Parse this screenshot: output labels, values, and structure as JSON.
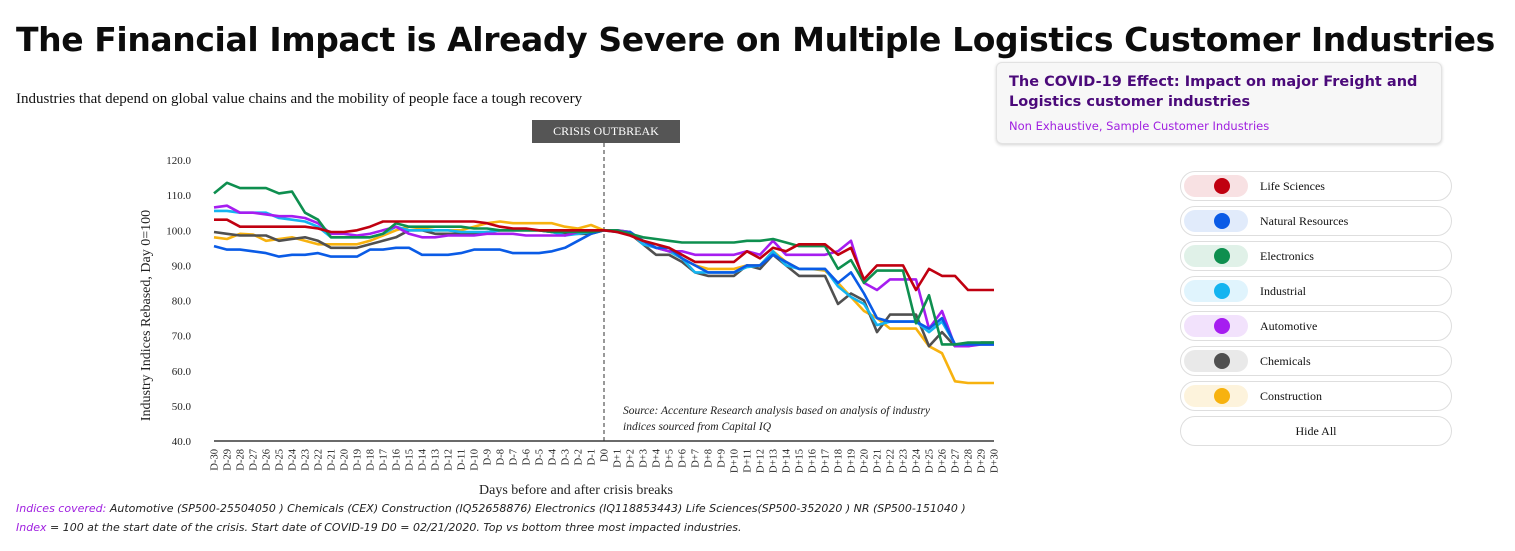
{
  "header": {
    "title": "The Financial Impact is Already Severe on Multiple Logistics Customer Industries",
    "subtitle": "Industries that depend on global value chains and the mobility of people face a tough recovery"
  },
  "info_card": {
    "title": "The COVID-19 Effect: Impact on major Freight and Logistics customer industries",
    "subtitle": "Non Exhaustive, Sample Customer Industries"
  },
  "legend": {
    "items": [
      {
        "label": "Life Sciences",
        "color": "#c00010",
        "bg": "#f8e1e3"
      },
      {
        "label": "Natural Resources",
        "color": "#0a5be6",
        "bg": "#e1ebfb"
      },
      {
        "label": "Electronics",
        "color": "#0e8f4f",
        "bg": "#e0f1e8"
      },
      {
        "label": "Industrial",
        "color": "#14b4f0",
        "bg": "#e0f4fd"
      },
      {
        "label": "Automotive",
        "color": "#a61df0",
        "bg": "#f2e2fc"
      },
      {
        "label": "Chemicals",
        "color": "#505050",
        "bg": "#e9e9e9"
      },
      {
        "label": "Construction",
        "color": "#f7b20f",
        "bg": "#fdf3dc"
      }
    ],
    "hide_all_label": "Hide All"
  },
  "footnotes": {
    "indices_key": "Indices covered:",
    "indices_text": " Automotive (SP500-25504050 ) Chemicals (CEX) Construction (IQ52658876) Electronics (IQ118853443) Life Sciences(SP500-352020 ) NR (SP500-151040 )",
    "index_key": "Index",
    "index_text": " = 100 at the start date of the crisis. Start date of COVID-19 D0 = 02/21/2020. Top vs bottom three most impacted industries."
  },
  "chart_data": {
    "type": "line",
    "crisis_label": "CRISIS OUTBREAK",
    "crisis_x": "D0",
    "source_note": [
      "Source: Accenture Research analysis based on analysis of industry",
      "indices sourced from Capital IQ"
    ],
    "xlabel": "Days before and after crisis breaks",
    "ylabel": "Industry Indices Rebased, Day 0=100",
    "ylim": [
      40,
      120
    ],
    "yticks": [
      "120.0",
      "110.0",
      "100.0",
      "90.0",
      "80.0",
      "70.0",
      "60.0",
      "50.0",
      "40.0"
    ],
    "grid": false,
    "categories": [
      "D-30",
      "D-29",
      "D-28",
      "D-27",
      "D-26",
      "D-25",
      "D-24",
      "D-23",
      "D-22",
      "D-21",
      "D-20",
      "D-19",
      "D-18",
      "D-17",
      "D-16",
      "D-15",
      "D-14",
      "D-13",
      "D-12",
      "D-11",
      "D-10",
      "D-9",
      "D-8",
      "D-7",
      "D-6",
      "D-5",
      "D-4",
      "D-3",
      "D-2",
      "D-1",
      "D0",
      "D+1",
      "D+2",
      "D+3",
      "D+4",
      "D+5",
      "D+6",
      "D+7",
      "D+8",
      "D+9",
      "D+10",
      "D+11",
      "D+12",
      "D+13",
      "D+14",
      "D+15",
      "D+16",
      "D+17",
      "D+18",
      "D+19",
      "D+20",
      "D+21",
      "D+22",
      "D+23",
      "D+24",
      "D+25",
      "D+26",
      "D+27",
      "D+28",
      "D+29",
      "D+30"
    ],
    "series": [
      {
        "name": "Construction",
        "color": "#f7b20f",
        "values": [
          98,
          97.5,
          99,
          98.8,
          97,
          97.5,
          98,
          97,
          96,
          96,
          96,
          96,
          97,
          98.5,
          100,
          101,
          100.5,
          100,
          100,
          100,
          101,
          102,
          102.5,
          102,
          102,
          102,
          102,
          101,
          100.5,
          101.5,
          100,
          100,
          99.5,
          97,
          95,
          94,
          92,
          90,
          89,
          89,
          89,
          90,
          90,
          94,
          91,
          89,
          89,
          88.5,
          85,
          81,
          77,
          75,
          72,
          72,
          72,
          67,
          65,
          57,
          56.5,
          56.5,
          56.5
        ]
      },
      {
        "name": "Chemicals",
        "color": "#505050",
        "values": [
          99.5,
          99,
          98.5,
          98.5,
          98.5,
          97,
          97.5,
          98,
          97,
          95,
          95,
          95,
          96,
          97,
          98,
          100,
          100,
          99,
          99,
          99,
          99,
          99.5,
          100,
          100,
          100,
          100,
          99.5,
          99,
          99,
          99,
          100,
          100,
          99,
          96,
          93,
          93,
          91,
          88,
          87,
          87,
          87,
          90,
          89,
          93,
          90,
          87,
          87,
          87,
          79,
          82,
          80,
          71,
          76,
          76,
          76,
          67,
          71,
          67,
          67,
          68,
          68
        ]
      },
      {
        "name": "Industrial",
        "color": "#14b4f0",
        "values": [
          105.5,
          105.5,
          105,
          105,
          105,
          103.5,
          103,
          102.5,
          101,
          98,
          98,
          98,
          98,
          99,
          101,
          100,
          100,
          100,
          100,
          99.5,
          99.5,
          99.5,
          100,
          100,
          100,
          100,
          99.5,
          98.5,
          99,
          99.5,
          100,
          100,
          99.5,
          96,
          95,
          94,
          92,
          88,
          88,
          88,
          88,
          89.5,
          90,
          94,
          90,
          89,
          89,
          89,
          84,
          81,
          79,
          73,
          74,
          74,
          74,
          71,
          74,
          67.5,
          67.5,
          67.5,
          67.5
        ]
      },
      {
        "name": "Automotive",
        "color": "#a61df0",
        "values": [
          106.5,
          107,
          105,
          105,
          104.5,
          104,
          104,
          103.5,
          102,
          99,
          99,
          98.5,
          99,
          100,
          101,
          99,
          98,
          98,
          98.5,
          98.5,
          98.5,
          99,
          99,
          99,
          98.5,
          98.5,
          98.5,
          98.5,
          99.5,
          100,
          100,
          100,
          99.5,
          97,
          95,
          94,
          94,
          93,
          93,
          93,
          93,
          94,
          93,
          97,
          93,
          93,
          93,
          93,
          94,
          97,
          85,
          83,
          86,
          86,
          86,
          72,
          77,
          67,
          67,
          67.5,
          67.5
        ]
      },
      {
        "name": "Natural Resources",
        "color": "#0a5be6",
        "values": [
          95.5,
          94.5,
          94.5,
          94,
          93.5,
          92.5,
          93,
          93,
          93.5,
          92.5,
          92.5,
          92.5,
          94.5,
          94.5,
          95,
          95,
          93,
          93,
          93,
          93.5,
          94.5,
          94.5,
          94.5,
          93.5,
          93.5,
          93.5,
          94,
          95,
          97,
          99,
          100,
          99.5,
          99.5,
          97,
          95,
          95,
          92,
          90,
          88,
          88,
          88,
          90,
          90,
          93,
          91,
          89,
          89,
          89,
          85,
          88,
          82,
          75,
          74,
          74,
          74,
          72,
          75,
          67.5,
          67.5,
          67.5,
          67.5
        ]
      },
      {
        "name": "Electronics",
        "color": "#0e8f4f",
        "values": [
          110.5,
          113.5,
          112,
          112,
          112,
          110.5,
          111,
          105,
          103,
          98,
          98,
          98,
          98,
          99,
          102,
          101,
          101,
          101,
          101,
          101,
          100.5,
          100.5,
          100,
          100,
          100,
          100,
          99.5,
          99.5,
          99.5,
          99.5,
          100,
          100,
          99,
          98,
          97.5,
          97,
          96.5,
          96.5,
          96.5,
          96.5,
          96.5,
          97,
          97,
          97.5,
          96.5,
          95.5,
          95.5,
          95.5,
          89,
          91.5,
          85,
          88.5,
          88.5,
          88.5,
          73.5,
          81.5,
          67.5,
          67.5,
          68,
          68,
          68
        ]
      },
      {
        "name": "Life Sciences",
        "color": "#c00010",
        "values": [
          103,
          103,
          101,
          101,
          101,
          101,
          101,
          101,
          100.5,
          99.5,
          99.5,
          100,
          101,
          102.5,
          102.5,
          102.5,
          102.5,
          102.5,
          102.5,
          102.5,
          102.5,
          102,
          101,
          100.5,
          100.5,
          100,
          100,
          100,
          100,
          100,
          100,
          99.5,
          98.5,
          97,
          96,
          95,
          93,
          91,
          91,
          91,
          91,
          94,
          92,
          95,
          94,
          96,
          96,
          96,
          93,
          95,
          86,
          90,
          90,
          90,
          83,
          89,
          87,
          87,
          83,
          83,
          83
        ]
      }
    ]
  }
}
